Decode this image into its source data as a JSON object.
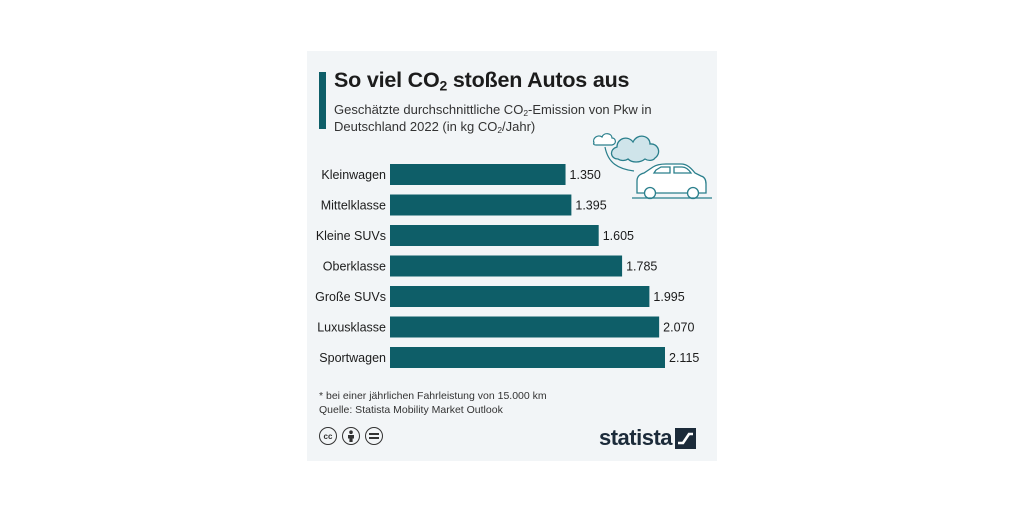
{
  "title_main": "So viel CO",
  "title_sub": "2",
  "title_rest": " stoßen Autos aus",
  "subtitle_a": "Geschätzte durchschnittliche CO",
  "subtitle_sub1": "2",
  "subtitle_b": "-Emission von Pkw in Deutschland 2022 (in kg CO",
  "subtitle_sub2": "2",
  "subtitle_c": "/Jahr)",
  "footnote": "* bei einer jährlichen Fahrleistung von 15.000 km",
  "source": "Quelle: Statista Mobility Market Outlook",
  "brand": "statista",
  "colors": {
    "bar": "#0e5e68",
    "accent": "#0e5e68",
    "illustration": "#2a7f8c",
    "cloud_fill": "#cfe4ea"
  },
  "license_icons": [
    "creative-commons-icon",
    "attribution-icon",
    "no-derivatives-icon"
  ],
  "chart_data": {
    "type": "bar",
    "orientation": "horizontal",
    "categories": [
      "Kleinwagen",
      "Mittelklasse",
      "Kleine SUVs",
      "Oberklasse",
      "Große SUVs",
      "Luxusklasse",
      "Sportwagen"
    ],
    "values": [
      1350,
      1395,
      1605,
      1785,
      1995,
      2070,
      2115
    ],
    "value_labels": [
      "1.350",
      "1.395",
      "1.605",
      "1.785",
      "1.995",
      "2.070",
      "2.115"
    ],
    "xlim": [
      0,
      2115
    ],
    "grid": false,
    "legend": "none"
  }
}
